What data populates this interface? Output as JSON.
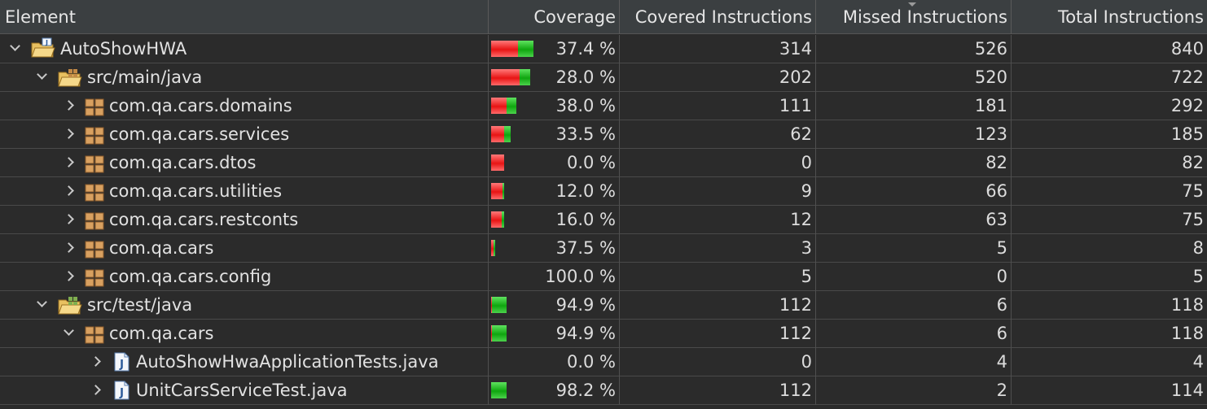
{
  "columns": [
    {
      "label": "Element"
    },
    {
      "label": "Coverage"
    },
    {
      "label": "Covered Instructions"
    },
    {
      "label": "Missed Instructions"
    },
    {
      "label": "Total Instructions"
    }
  ],
  "rows": [
    {
      "name": "AutoShowHWA",
      "icon": "project-folder-icon",
      "expanded": true,
      "coverage": "37.4 %",
      "covered": "314",
      "missed": "526",
      "total": "840",
      "coverage_fraction": 0.374,
      "total_count": 840
    },
    {
      "name": "src/main/java",
      "icon": "source-folder-icon",
      "expanded": true,
      "coverage": "28.0 %",
      "covered": "202",
      "missed": "520",
      "total": "722",
      "coverage_fraction": 0.28,
      "total_count": 722
    },
    {
      "name": "com.qa.cars.domains",
      "icon": "package-icon",
      "expanded": false,
      "coverage": "38.0 %",
      "covered": "111",
      "missed": "181",
      "total": "292",
      "coverage_fraction": 0.38,
      "total_count": 292
    },
    {
      "name": "com.qa.cars.services",
      "icon": "package-icon",
      "expanded": false,
      "coverage": "33.5 %",
      "covered": "62",
      "missed": "123",
      "total": "185",
      "coverage_fraction": 0.335,
      "total_count": 185
    },
    {
      "name": "com.qa.cars.dtos",
      "icon": "package-icon",
      "expanded": false,
      "coverage": "0.0 %",
      "covered": "0",
      "missed": "82",
      "total": "82",
      "coverage_fraction": 0.0,
      "total_count": 82
    },
    {
      "name": "com.qa.cars.utilities",
      "icon": "package-icon",
      "expanded": false,
      "coverage": "12.0 %",
      "covered": "9",
      "missed": "66",
      "total": "75",
      "coverage_fraction": 0.12,
      "total_count": 75
    },
    {
      "name": "com.qa.cars.restconts",
      "icon": "package-icon",
      "expanded": false,
      "coverage": "16.0 %",
      "covered": "12",
      "missed": "63",
      "total": "75",
      "coverage_fraction": 0.16,
      "total_count": 75
    },
    {
      "name": "com.qa.cars",
      "icon": "package-icon",
      "expanded": false,
      "coverage": "37.5 %",
      "covered": "3",
      "missed": "5",
      "total": "8",
      "coverage_fraction": 0.375,
      "total_count": 8
    },
    {
      "name": "com.qa.cars.config",
      "icon": "package-icon",
      "expanded": false,
      "coverage": "100.0 %",
      "covered": "5",
      "missed": "0",
      "total": "5",
      "coverage_fraction": 1.0,
      "total_count": 5
    },
    {
      "name": "src/test/java",
      "icon": "test-source-folder-icon",
      "expanded": true,
      "coverage": "94.9 %",
      "covered": "112",
      "missed": "6",
      "total": "118",
      "coverage_fraction": 0.949,
      "total_count": 118
    },
    {
      "name": "com.qa.cars",
      "icon": "package-icon",
      "expanded": true,
      "coverage": "94.9 %",
      "covered": "112",
      "missed": "6",
      "total": "118",
      "coverage_fraction": 0.949,
      "total_count": 118
    },
    {
      "name": "AutoShowHwaApplicationTests.java",
      "icon": "java-file-icon",
      "expanded": false,
      "coverage": "0.0 %",
      "covered": "0",
      "missed": "4",
      "total": "4",
      "coverage_fraction": 0.0,
      "total_count": 4
    },
    {
      "name": "UnitCarsServiceTest.java",
      "icon": "java-file-icon",
      "expanded": false,
      "coverage": "98.2 %",
      "covered": "112",
      "missed": "2",
      "total": "114",
      "coverage_fraction": 0.982,
      "total_count": 114
    }
  ],
  "colors": {
    "background": "#2b2b2b",
    "header": "#3b3f41",
    "covered": "#1cb51c",
    "missed": "#f01e1e"
  }
}
